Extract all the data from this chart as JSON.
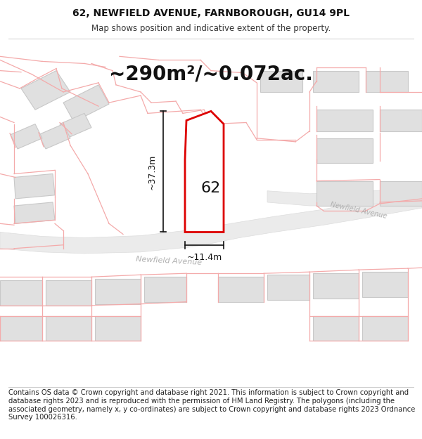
{
  "title": "62, NEWFIELD AVENUE, FARNBOROUGH, GU14 9PL",
  "subtitle": "Map shows position and indicative extent of the property.",
  "area_text": "~290m²/~0.072ac.",
  "dim_width": "~11.4m",
  "dim_height": "~37.3m",
  "label": "62",
  "footer": "Contains OS data © Crown copyright and database right 2021. This information is subject to Crown copyright and database rights 2023 and is reproduced with the permission of HM Land Registry. The polygons (including the associated geometry, namely x, y co-ordinates) are subject to Crown copyright and database rights 2023 Ordnance Survey 100026316.",
  "bg_color": "#ffffff",
  "map_bg": "#ffffff",
  "pink": "#f4aaaa",
  "building_fill": "#e0e0e0",
  "building_edge": "#c8c8c8",
  "plot_color": "#dd0000",
  "title_fontsize": 10,
  "subtitle_fontsize": 8.5,
  "area_fontsize": 20,
  "label_fontsize": 16,
  "dim_fontsize": 9,
  "footer_fontsize": 7.2,
  "road_label_color": "#b0b0b0",
  "road_label_size": 8
}
